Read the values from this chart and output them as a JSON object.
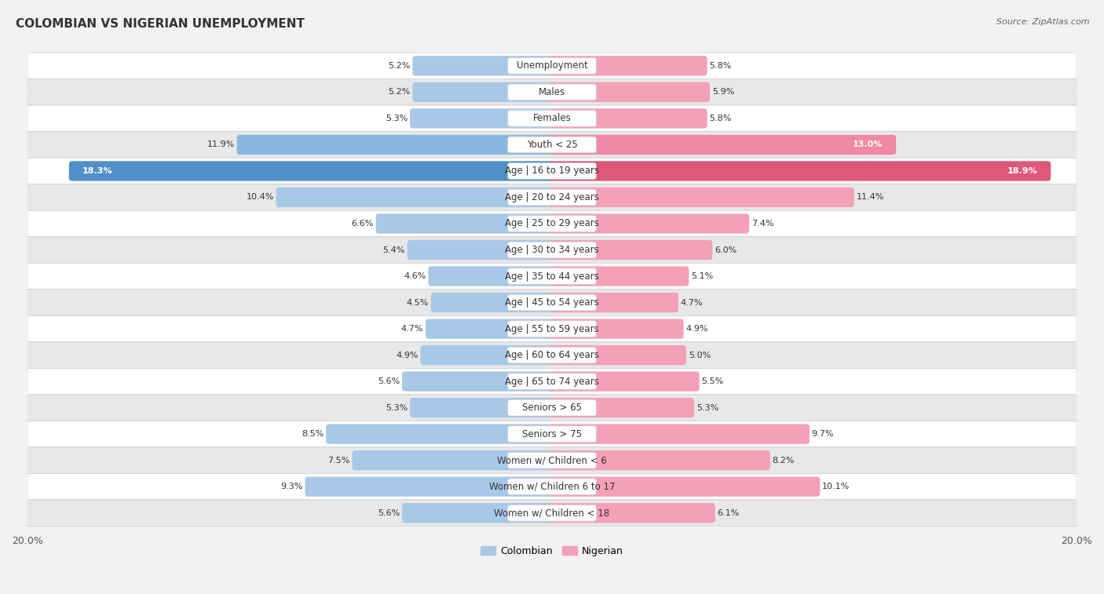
{
  "title": "COLOMBIAN VS NIGERIAN UNEMPLOYMENT",
  "source": "Source: ZipAtlas.com",
  "categories": [
    "Unemployment",
    "Males",
    "Females",
    "Youth < 25",
    "Age | 16 to 19 years",
    "Age | 20 to 24 years",
    "Age | 25 to 29 years",
    "Age | 30 to 34 years",
    "Age | 35 to 44 years",
    "Age | 45 to 54 years",
    "Age | 55 to 59 years",
    "Age | 60 to 64 years",
    "Age | 65 to 74 years",
    "Seniors > 65",
    "Seniors > 75",
    "Women w/ Children < 6",
    "Women w/ Children 6 to 17",
    "Women w/ Children < 18"
  ],
  "colombian": [
    5.2,
    5.2,
    5.3,
    11.9,
    18.3,
    10.4,
    6.6,
    5.4,
    4.6,
    4.5,
    4.7,
    4.9,
    5.6,
    5.3,
    8.5,
    7.5,
    9.3,
    5.6
  ],
  "nigerian": [
    5.8,
    5.9,
    5.8,
    13.0,
    18.9,
    11.4,
    7.4,
    6.0,
    5.1,
    4.7,
    4.9,
    5.0,
    5.5,
    5.3,
    9.7,
    8.2,
    10.1,
    6.1
  ],
  "colombian_color_normal": "#a8c8e8",
  "nigerian_color_normal": "#f4a0b8",
  "colombian_color_medium": "#88b8e0",
  "nigerian_color_medium": "#f088a8",
  "colombian_color_dark": "#5090c8",
  "nigerian_color_dark": "#e05878",
  "bar_height": 0.52,
  "xlim": 20.0,
  "bg_color": "#f2f2f2",
  "row_bg_light": "#ffffff",
  "row_bg_dark": "#e8e8e8",
  "label_fontsize": 8.5,
  "title_fontsize": 11,
  "value_fontsize": 8.0,
  "source_fontsize": 8.0
}
